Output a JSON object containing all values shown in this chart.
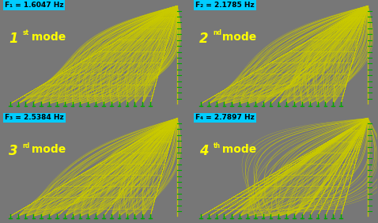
{
  "bg": "#000000",
  "cable_color": "#CCCC00",
  "support_color": "#00AA00",
  "freq_box_color": "#00CCFF",
  "fig_bg": "#777777",
  "frequencies": [
    "F₁ = 1.6047 Hz",
    "F₂ = 2.1785 Hz",
    "F₃ = 2.5384 Hz",
    "F₄ = 2.7897 Hz"
  ],
  "mode_numbers": [
    "1",
    "2",
    "3",
    "4"
  ],
  "mode_superscripts": [
    "st",
    "nd",
    "rd",
    "th"
  ],
  "n_cables": 19,
  "n_crossties": 8,
  "n_frames": 18
}
